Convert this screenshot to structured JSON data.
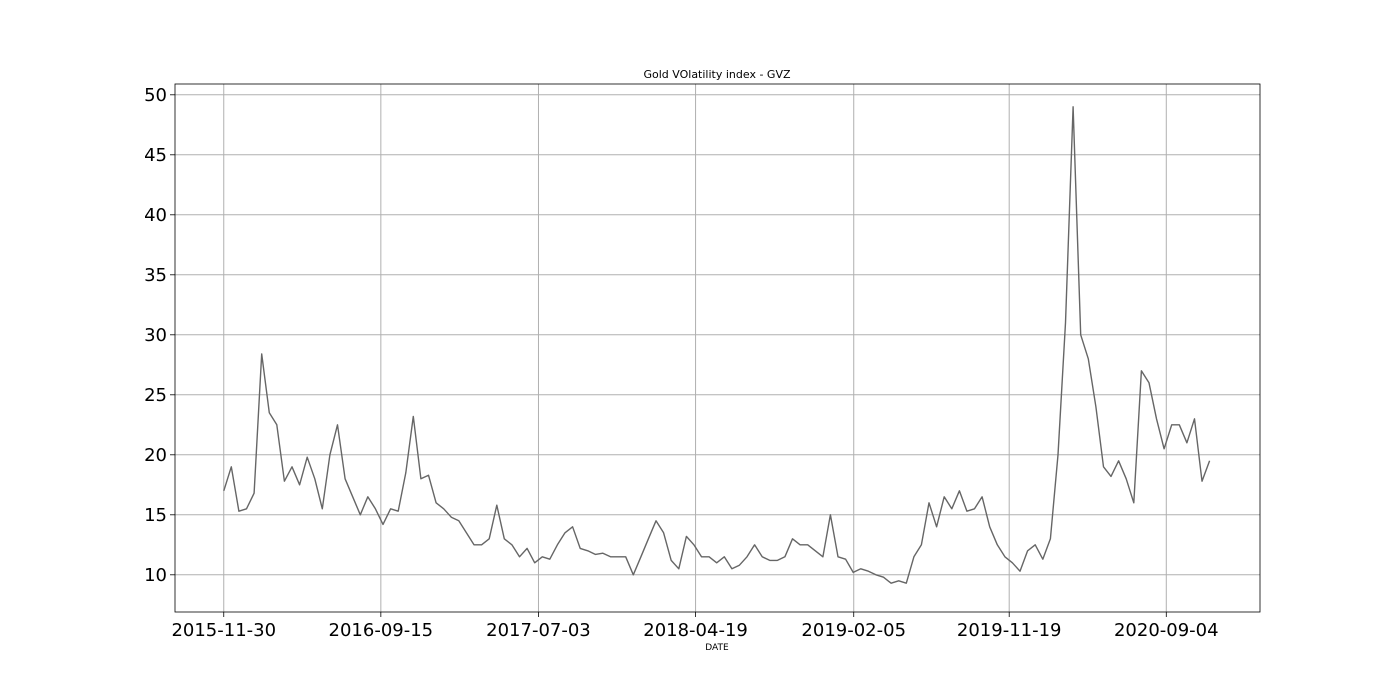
{
  "chart_data": {
    "type": "line",
    "title": "Gold VOlatility index - GVZ",
    "xlabel": "DATE",
    "ylabel": "",
    "xlim": [
      "2015-09-01",
      "2021-02-24"
    ],
    "ylim": [
      6.9,
      50.9
    ],
    "grid": true,
    "line_color": "#666666",
    "grid_color": "#b0b0b0",
    "x_ticks": [
      "2015-11-30",
      "2016-09-15",
      "2017-07-03",
      "2018-04-19",
      "2019-02-05",
      "2019-11-19",
      "2020-09-04"
    ],
    "y_ticks": [
      10,
      15,
      20,
      25,
      30,
      35,
      40,
      45,
      50
    ],
    "series": [
      {
        "x": [
          "2015-11-30",
          "2015-12-14",
          "2015-12-28",
          "2016-01-11",
          "2016-01-25",
          "2016-02-08",
          "2016-02-22",
          "2016-03-07",
          "2016-03-21",
          "2016-04-04",
          "2016-04-18",
          "2016-05-02",
          "2016-05-16",
          "2016-05-30",
          "2016-06-13",
          "2016-06-27",
          "2016-07-11",
          "2016-07-25",
          "2016-08-08",
          "2016-08-22",
          "2016-09-05",
          "2016-09-19",
          "2016-10-03",
          "2016-10-17",
          "2016-10-31",
          "2016-11-14",
          "2016-11-28",
          "2016-12-12",
          "2016-12-26",
          "2017-01-09",
          "2017-01-23",
          "2017-02-06",
          "2017-02-20",
          "2017-03-06",
          "2017-03-20",
          "2017-04-03",
          "2017-04-17",
          "2017-05-01",
          "2017-05-15",
          "2017-05-29",
          "2017-06-12",
          "2017-06-26",
          "2017-07-10",
          "2017-07-24",
          "2017-08-07",
          "2017-08-21",
          "2017-09-04",
          "2017-09-18",
          "2017-10-02",
          "2017-10-16",
          "2017-10-30",
          "2017-11-13",
          "2017-11-27",
          "2017-12-11",
          "2017-12-25",
          "2018-01-08",
          "2018-01-22",
          "2018-02-05",
          "2018-02-19",
          "2018-03-05",
          "2018-03-19",
          "2018-04-02",
          "2018-04-16",
          "2018-04-30",
          "2018-05-14",
          "2018-05-28",
          "2018-06-11",
          "2018-06-25",
          "2018-07-09",
          "2018-07-23",
          "2018-08-06",
          "2018-08-20",
          "2018-09-03",
          "2018-09-17",
          "2018-10-01",
          "2018-10-15",
          "2018-10-29",
          "2018-11-12",
          "2018-11-26",
          "2018-12-10",
          "2018-12-24",
          "2019-01-07",
          "2019-01-21",
          "2019-02-04",
          "2019-02-18",
          "2019-03-04",
          "2019-03-18",
          "2019-04-01",
          "2019-04-15",
          "2019-04-29",
          "2019-05-13",
          "2019-05-27",
          "2019-06-10",
          "2019-06-24",
          "2019-07-08",
          "2019-07-22",
          "2019-08-05",
          "2019-08-19",
          "2019-09-02",
          "2019-09-16",
          "2019-09-30",
          "2019-10-14",
          "2019-10-28",
          "2019-11-11",
          "2019-11-25",
          "2019-12-09",
          "2019-12-23",
          "2020-01-06",
          "2020-01-20",
          "2020-02-03",
          "2020-02-17",
          "2020-03-02",
          "2020-03-16",
          "2020-03-30",
          "2020-04-13",
          "2020-04-27",
          "2020-05-11",
          "2020-05-25",
          "2020-06-08",
          "2020-06-22",
          "2020-07-06",
          "2020-07-20",
          "2020-08-03",
          "2020-08-17",
          "2020-08-31",
          "2020-09-14",
          "2020-09-28",
          "2020-10-12",
          "2020-10-26",
          "2020-11-09",
          "2020-11-23"
        ],
        "y": [
          17,
          19,
          15.3,
          15.5,
          16.8,
          28.4,
          23.5,
          22.5,
          17.8,
          19,
          17.5,
          19.8,
          18,
          15.5,
          20,
          22.5,
          18,
          16.5,
          15,
          16.5,
          15.5,
          14.2,
          15.5,
          15.3,
          18.5,
          23.2,
          18,
          18.3,
          16,
          15.5,
          14.8,
          14.5,
          13.5,
          12.5,
          12.5,
          13,
          15.8,
          13,
          12.5,
          11.5,
          12.2,
          11,
          11.5,
          11.3,
          12.5,
          13.5,
          14,
          12.2,
          12,
          11.7,
          11.8,
          11.5,
          11.5,
          11.5,
          10,
          11.5,
          13,
          14.5,
          13.5,
          11.2,
          10.5,
          13.2,
          12.5,
          11.5,
          11.5,
          11,
          11.5,
          10.5,
          10.8,
          11.5,
          12.5,
          11.5,
          11.2,
          11.2,
          11.5,
          13,
          12.5,
          12.5,
          12,
          11.5,
          15,
          11.5,
          11.3,
          10.2,
          10.5,
          10.3,
          10,
          9.8,
          9.3,
          9.5,
          9.3,
          11.5,
          12.5,
          16,
          14,
          16.5,
          15.5,
          17,
          15.3,
          15.5,
          16.5,
          14,
          12.5,
          11.5,
          11,
          10.3,
          12,
          12.5,
          11.3,
          13,
          20,
          31,
          49,
          30,
          28,
          24,
          19,
          18.2,
          19.5,
          18,
          16,
          27,
          26,
          23,
          20.5,
          22.5,
          22.5,
          21,
          23,
          17.8,
          19.5
        ]
      }
    ]
  }
}
